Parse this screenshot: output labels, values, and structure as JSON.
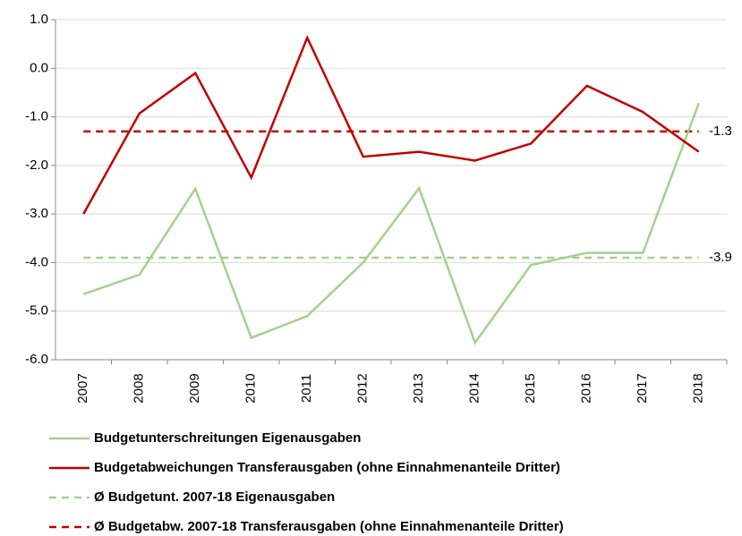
{
  "chart_data": {
    "type": "line",
    "categories": [
      "2007",
      "2008",
      "2009",
      "2010",
      "2011",
      "2012",
      "2013",
      "2014",
      "2015",
      "2016",
      "2017",
      "2018"
    ],
    "series": [
      {
        "name": "Budgetunterschreitungen Eigenausgaben",
        "color": "#a3d18f",
        "values": [
          -4.65,
          -4.25,
          -2.48,
          -5.55,
          -5.1,
          -4.0,
          -2.47,
          -5.65,
          -4.05,
          -3.8,
          -3.8,
          -0.72
        ]
      },
      {
        "name": "Budgetabweichungen Transferausgaben (ohne Einnahmenanteile Dritter)",
        "color": "#c00000",
        "values": [
          -3.0,
          -0.93,
          -0.1,
          -2.25,
          0.63,
          -1.82,
          -1.72,
          -1.9,
          -1.55,
          -0.36,
          -0.9,
          -1.72
        ]
      }
    ],
    "reference_lines": [
      {
        "name": "Ø Budgetunt. 2007-18 Eigenausgaben",
        "color": "#a3d18f",
        "value": -3.9
      },
      {
        "name": "Ø Budgetabw. 2007-18 Transferausgaben (ohne Einnahmenanteile Dritter)",
        "color": "#c00000",
        "value": -1.3
      }
    ],
    "ylim": [
      -6,
      1
    ],
    "yticks": [
      {
        "value": 1,
        "label": "1.0"
      },
      {
        "value": 0,
        "label": "0.0"
      },
      {
        "value": -1,
        "label": "-1.0"
      },
      {
        "value": -2,
        "label": "-2.0"
      },
      {
        "value": -3,
        "label": "-3.0"
      },
      {
        "value": -4,
        "label": "-4.0"
      },
      {
        "value": -5,
        "label": "-5.0"
      },
      {
        "value": -6,
        "label": "-6.0"
      }
    ],
    "grid": true,
    "legend": "bottom"
  }
}
